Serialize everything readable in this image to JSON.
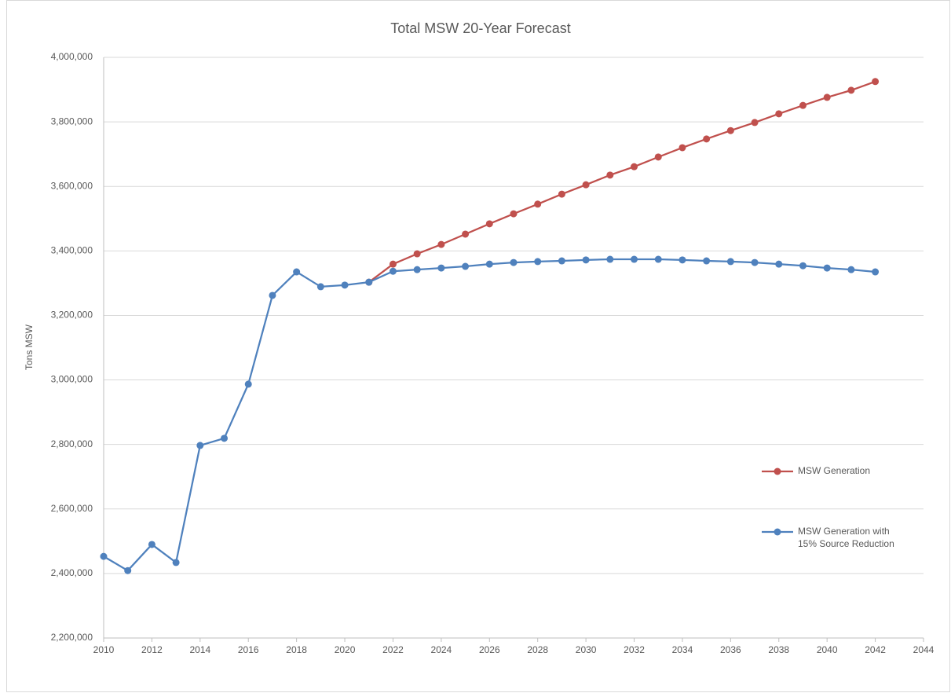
{
  "chart_data": {
    "type": "line",
    "title": "Total MSW 20-Year Forecast",
    "y_label": "Tons MSW",
    "x": [
      2010,
      2011,
      2012,
      2013,
      2014,
      2015,
      2016,
      2017,
      2018,
      2019,
      2020,
      2021,
      2022,
      2023,
      2024,
      2025,
      2026,
      2027,
      2028,
      2029,
      2030,
      2031,
      2032,
      2033,
      2034,
      2035,
      2036,
      2037,
      2038,
      2039,
      2040,
      2041,
      2042
    ],
    "series": [
      {
        "name": "MSW Generation",
        "color": "#c0504d",
        "values": [
          null,
          null,
          null,
          null,
          null,
          null,
          null,
          null,
          null,
          null,
          null,
          3303000,
          3359000,
          3391000,
          3420000,
          3452000,
          3484000,
          3515000,
          3545000,
          3576000,
          3605000,
          3635000,
          3661000,
          3691000,
          3720000,
          3747000,
          3773000,
          3798000,
          3825000,
          3851000,
          3876000,
          3898000,
          3925000
        ]
      },
      {
        "name": "MSW Generation with 15% Source Reduction",
        "color": "#4f81bd",
        "values": [
          2453000,
          2409000,
          2490000,
          2434000,
          2797000,
          2819000,
          2987000,
          3262000,
          3335000,
          3289000,
          3294000,
          3303000,
          3337000,
          3342000,
          3347000,
          3352000,
          3359000,
          3364000,
          3367000,
          3369000,
          3372000,
          3374000,
          3374000,
          3374000,
          3372000,
          3369000,
          3367000,
          3364000,
          3359000,
          3354000,
          3347000,
          3342000,
          3335000
        ]
      }
    ],
    "xlim": [
      2010,
      2044
    ],
    "xticks": [
      2010,
      2012,
      2014,
      2016,
      2018,
      2020,
      2022,
      2024,
      2026,
      2028,
      2030,
      2032,
      2034,
      2036,
      2038,
      2040,
      2042,
      2044
    ],
    "ylim": [
      2200000,
      4000000
    ],
    "yticks": [
      {
        "value": 2200000,
        "label": "2,200,000"
      },
      {
        "value": 2400000,
        "label": "2,400,000"
      },
      {
        "value": 2600000,
        "label": "2,600,000"
      },
      {
        "value": 2800000,
        "label": "2,800,000"
      },
      {
        "value": 3000000,
        "label": "3,000,000"
      },
      {
        "value": 3200000,
        "label": "3,200,000"
      },
      {
        "value": 3400000,
        "label": "3,400,000"
      },
      {
        "value": 3600000,
        "label": "3,600,000"
      },
      {
        "value": 3800000,
        "label": "3,800,000"
      },
      {
        "value": 4000000,
        "label": "4,000,000"
      }
    ],
    "grid": true,
    "legend": "right"
  }
}
